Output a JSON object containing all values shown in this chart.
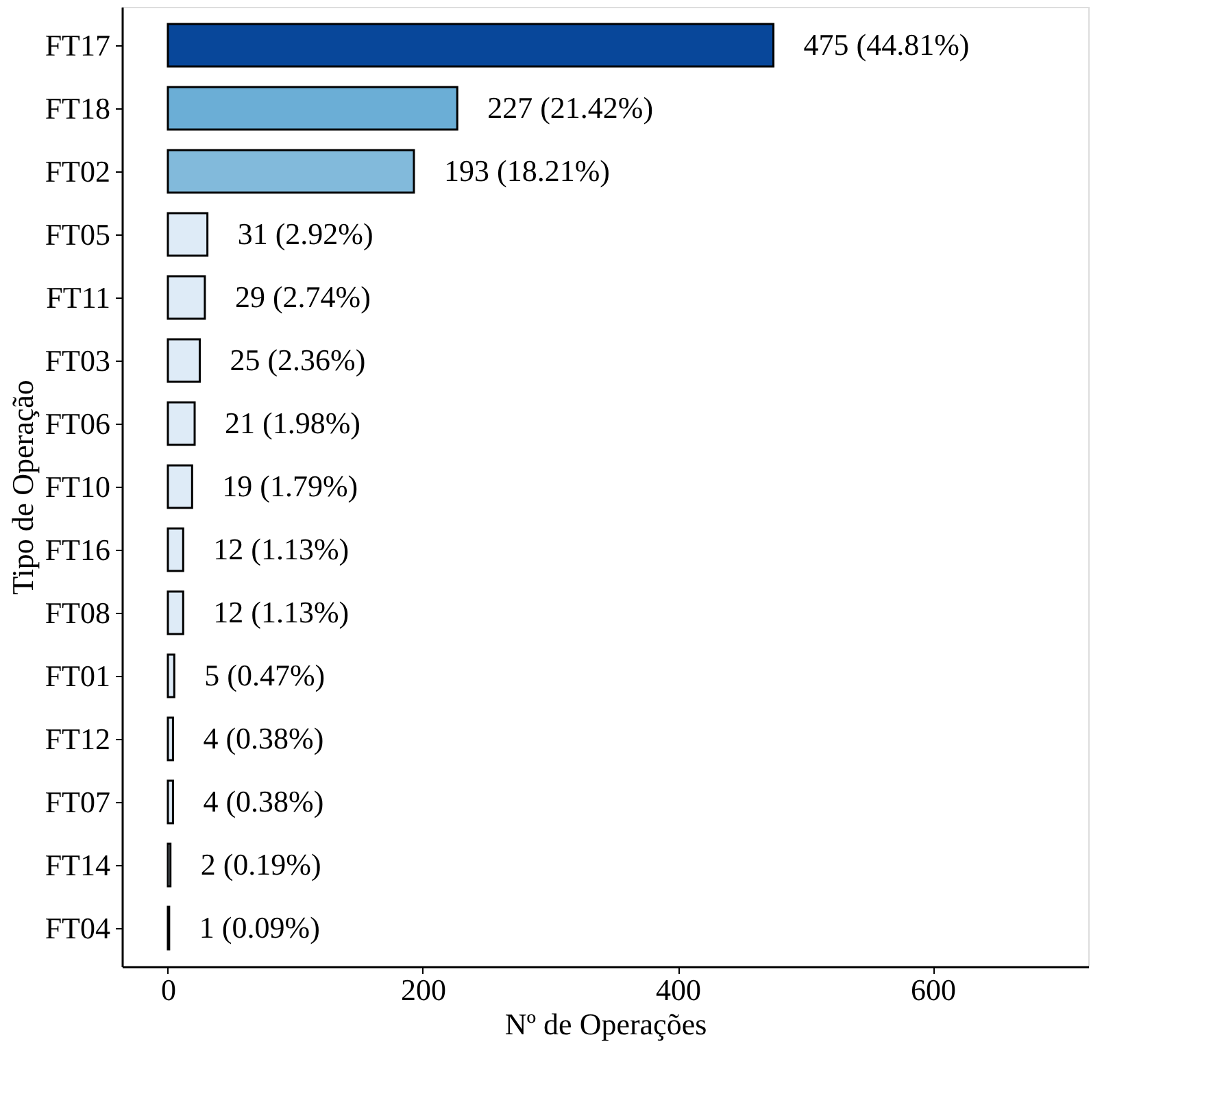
{
  "chart_data": {
    "type": "bar",
    "orientation": "horizontal",
    "categories": [
      "FT17",
      "FT18",
      "FT02",
      "FT05",
      "FT11",
      "FT03",
      "FT06",
      "FT10",
      "FT16",
      "FT08",
      "FT01",
      "FT12",
      "FT07",
      "FT14",
      "FT04"
    ],
    "values": [
      475,
      227,
      193,
      31,
      29,
      25,
      21,
      19,
      12,
      12,
      5,
      4,
      4,
      2,
      1
    ],
    "value_labels": [
      "475 (44.81%)",
      "227 (21.42%)",
      "193 (18.21%)",
      "31 (2.92%)",
      "29 (2.74%)",
      "25 (2.36%)",
      "21 (1.98%)",
      "19 (1.79%)",
      "12 (1.13%)",
      "12 (1.13%)",
      "5 (0.47%)",
      "4 (0.38%)",
      "4 (0.38%)",
      "2 (0.19%)",
      "1 (0.09%)"
    ],
    "colors": [
      "#08479a",
      "#6baed6",
      "#82badb",
      "#deebf7",
      "#deebf7",
      "#deebf7",
      "#deebf7",
      "#deebf7",
      "#deebf7",
      "#deebf7",
      "#deebf7",
      "#deebf7",
      "#deebf7",
      "#deebf7",
      "#deebf7"
    ],
    "xlabel": "Nº de Operações",
    "ylabel": "Tipo de Operação",
    "xlim": [
      -36,
      722
    ],
    "xticks": [
      0,
      200,
      400,
      600
    ],
    "grid": false
  }
}
